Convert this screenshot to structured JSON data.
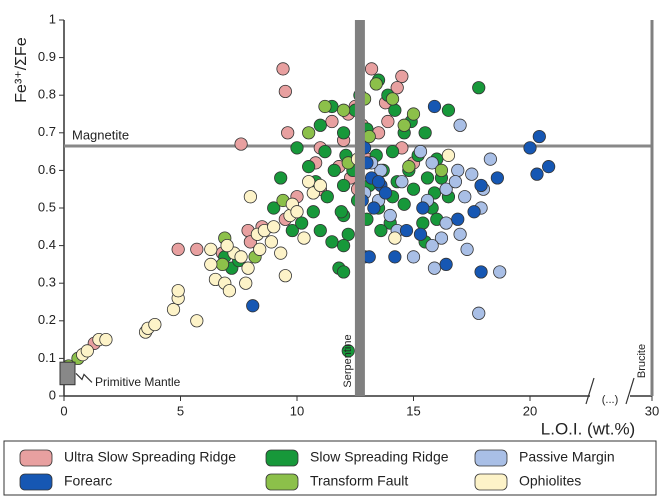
{
  "chart_data": {
    "type": "scatter",
    "y_label": "Fe³⁺/ΣFe",
    "x_label": "L.O.I. (wt.%)",
    "xlim": [
      0,
      30
    ],
    "xticks": [
      0,
      5,
      10,
      15,
      20,
      30
    ],
    "x_axis_break": "(...)",
    "ylim": [
      0,
      1
    ],
    "yticks": [
      0,
      0.1,
      0.2,
      0.3,
      0.4,
      0.5,
      0.6,
      0.7,
      0.8,
      0.9,
      1
    ],
    "legend": "bottom",
    "reference_lines": [
      {
        "label": "Magnetite",
        "y": 0.665
      },
      {
        "label": "Serpentine",
        "x": 12.7
      },
      {
        "label": "Brucite",
        "x": 30
      }
    ],
    "reference_box": {
      "label": "Primitive Mantle",
      "x": [
        0,
        0.3
      ],
      "y": [
        0.03,
        0.09
      ]
    },
    "series": [
      {
        "name": "Ultra Slow Spreading Ridge",
        "color": "#e8a0a0",
        "x": [
          9.4,
          9.5,
          9.6,
          7.6,
          13.2,
          14.5,
          14.3,
          12.5,
          13.8,
          11.5,
          12.8,
          13.5,
          11.0,
          12.0,
          14.5,
          11.8,
          12.3,
          11.0,
          10.0,
          9.5,
          8.5,
          7.9,
          8.0,
          6.8,
          5.7,
          4.9,
          1.3,
          12.8,
          13.0,
          10.8,
          12.2,
          13.9,
          15.0,
          12.6
        ],
        "values": [
          0.87,
          0.81,
          0.7,
          0.67,
          0.87,
          0.85,
          0.82,
          0.77,
          0.78,
          0.73,
          0.72,
          0.7,
          0.66,
          0.68,
          0.66,
          0.61,
          0.58,
          0.55,
          0.53,
          0.47,
          0.45,
          0.44,
          0.41,
          0.38,
          0.39,
          0.39,
          0.14,
          0.65,
          0.63,
          0.62,
          0.75,
          0.73,
          0.62,
          0.55
        ]
      },
      {
        "name": "Slow Spreading Ridge",
        "color": "#17983a",
        "x": [
          12.2,
          17.8,
          16.5,
          13.5,
          12.7,
          13.9,
          11.5,
          12.5,
          14.2,
          14.9,
          11.0,
          12.0,
          13.0,
          14.6,
          15.5,
          10.0,
          11.2,
          12.1,
          13.4,
          14.1,
          15.2,
          16.0,
          10.5,
          11.6,
          12.4,
          13.7,
          14.8,
          15.6,
          9.3,
          10.8,
          12.0,
          13.1,
          14.3,
          15.0,
          16.5,
          11.3,
          12.6,
          13.5,
          14.6,
          15.8,
          12.0,
          13.0,
          14.0,
          15.4,
          16.0,
          11.0,
          12.2,
          13.6,
          11.5,
          12.0,
          15.5,
          9.8,
          10.2,
          9.0,
          11.8,
          12.0,
          7.2,
          6.9,
          7.5,
          10.7,
          15.9,
          14.1,
          16.2,
          11.9
        ],
        "values": [
          0.12,
          0.82,
          0.76,
          0.84,
          0.8,
          0.8,
          0.77,
          0.76,
          0.76,
          0.73,
          0.72,
          0.7,
          0.71,
          0.7,
          0.7,
          0.66,
          0.65,
          0.64,
          0.64,
          0.65,
          0.64,
          0.63,
          0.61,
          0.6,
          0.6,
          0.6,
          0.6,
          0.58,
          0.58,
          0.57,
          0.56,
          0.56,
          0.57,
          0.55,
          0.53,
          0.53,
          0.52,
          0.5,
          0.51,
          0.5,
          0.48,
          0.47,
          0.46,
          0.46,
          0.47,
          0.44,
          0.43,
          0.44,
          0.41,
          0.4,
          0.41,
          0.44,
          0.46,
          0.5,
          0.34,
          0.33,
          0.34,
          0.37,
          0.36,
          0.49,
          0.54,
          0.53,
          0.58,
          0.49
        ]
      },
      {
        "name": "Passive Margin",
        "color": "#a9bfe6",
        "x": [
          17.0,
          15.3,
          15.8,
          16.9,
          18.3,
          17.5,
          18.0,
          16.4,
          17.2,
          14.5,
          13.5,
          12.9,
          15.6,
          16.4,
          17.0,
          16.2,
          15.8,
          17.3,
          15.0,
          14.3,
          15.9,
          18.7,
          17.8,
          16.8,
          13.6,
          14.0,
          13.2,
          17.9
        ],
        "values": [
          0.72,
          0.65,
          0.62,
          0.6,
          0.63,
          0.59,
          0.55,
          0.55,
          0.53,
          0.57,
          0.52,
          0.54,
          0.52,
          0.46,
          0.43,
          0.42,
          0.4,
          0.39,
          0.37,
          0.44,
          0.34,
          0.33,
          0.22,
          0.57,
          0.6,
          0.48,
          0.62,
          0.5
        ]
      },
      {
        "name": "Forearc",
        "color": "#1657b3",
        "x": [
          15.9,
          20.4,
          20.0,
          20.8,
          20.3,
          18.6,
          17.9,
          17.6,
          16.9,
          15.4,
          12.9,
          13.0,
          13.6,
          13.8,
          13.2,
          12.8,
          15.3,
          14.7,
          16.4,
          17.9,
          14.2,
          12.9,
          13.1,
          8.1,
          13.5,
          13.3
        ],
        "values": [
          0.77,
          0.69,
          0.66,
          0.61,
          0.59,
          0.58,
          0.56,
          0.49,
          0.47,
          0.5,
          0.66,
          0.62,
          0.56,
          0.54,
          0.58,
          0.52,
          0.43,
          0.44,
          0.35,
          0.33,
          0.37,
          0.37,
          0.37,
          0.24,
          0.57,
          0.5
        ]
      },
      {
        "name": "Transform Fault",
        "color": "#8cc04a",
        "x": [
          13.4,
          12.9,
          12.0,
          14.1,
          11.2,
          15.0,
          14.6,
          16.2,
          9.4,
          8.2,
          6.9,
          6.8,
          0.6,
          0.2,
          13.1,
          14.8,
          12.2,
          10.5
        ],
        "values": [
          0.83,
          0.79,
          0.76,
          0.79,
          0.77,
          0.75,
          0.72,
          0.6,
          0.52,
          0.37,
          0.42,
          0.35,
          0.1,
          0.08,
          0.69,
          0.61,
          0.62,
          0.7
        ]
      },
      {
        "name": "Ophiolites",
        "color": "#fdf3c8",
        "x": [
          0.8,
          1.0,
          1.5,
          1.8,
          3.5,
          3.6,
          3.9,
          4.7,
          4.9,
          4.9,
          5.7,
          6.3,
          6.5,
          6.9,
          7.1,
          7.3,
          7.6,
          7.9,
          7.8,
          8.3,
          8.6,
          8.9,
          9.0,
          9.3,
          9.5,
          9.7,
          9.8,
          10.0,
          10.5,
          10.7,
          8.0,
          11.0,
          12.6,
          14.2,
          16.5,
          7.0,
          6.3,
          8.4,
          10.3
        ],
        "values": [
          0.11,
          0.12,
          0.15,
          0.15,
          0.17,
          0.18,
          0.19,
          0.23,
          0.26,
          0.28,
          0.2,
          0.39,
          0.31,
          0.3,
          0.28,
          0.38,
          0.37,
          0.34,
          0.3,
          0.43,
          0.44,
          0.41,
          0.45,
          0.38,
          0.32,
          0.48,
          0.51,
          0.49,
          0.57,
          0.54,
          0.53,
          0.56,
          0.63,
          0.42,
          0.64,
          0.4,
          0.35,
          0.39,
          0.42
        ]
      }
    ]
  }
}
